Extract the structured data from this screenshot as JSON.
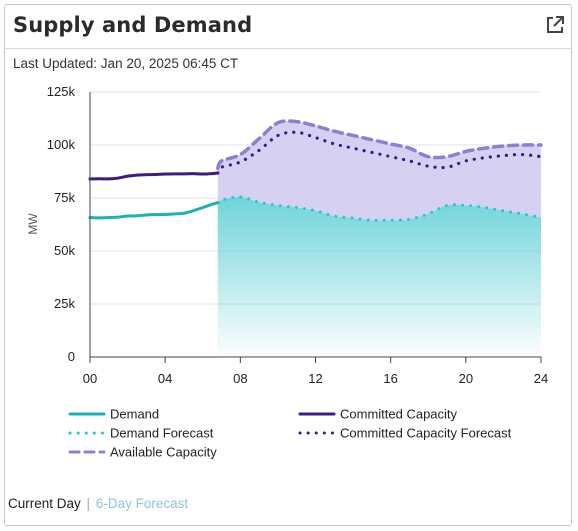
{
  "card": {
    "title": "Supply and Demand",
    "last_updated": "Last Updated: Jan 20, 2025 06:45 CT"
  },
  "footer": {
    "current_day": "Current Day",
    "separator": "|",
    "forecast_link": "6-Day Forecast"
  },
  "colors": {
    "demand": "#1ab3b8",
    "demand_forecast": "#2cc6d2",
    "committed": "#3f1a85",
    "committed_forecast": "#3f1a85",
    "available": "#8b80d4",
    "available_fill": "#cfc8ee",
    "demand_fill": "#7fd9de"
  },
  "chart_data": {
    "type": "line",
    "ylabel": "MW",
    "xlabel": "",
    "xlim": [
      0,
      24
    ],
    "ylim": [
      0,
      125000
    ],
    "x_ticks": [
      0,
      4,
      8,
      12,
      16,
      20,
      24
    ],
    "x_tick_labels": [
      "00",
      "04",
      "08",
      "12",
      "16",
      "20",
      "24"
    ],
    "y_ticks": [
      0,
      25000,
      50000,
      75000,
      100000,
      125000
    ],
    "y_tick_labels": [
      "0",
      "25k",
      "50k",
      "75k",
      "100k",
      "125k"
    ],
    "series": [
      {
        "name": "Demand",
        "style": "solid",
        "x": [
          0,
          0.5,
          1,
          1.5,
          2,
          2.5,
          3,
          3.5,
          4,
          4.5,
          5,
          5.5,
          6,
          6.5,
          6.8
        ],
        "y": [
          65800,
          65600,
          65800,
          66000,
          66500,
          66600,
          67000,
          67200,
          67200,
          67500,
          67800,
          69000,
          70500,
          72000,
          72800
        ]
      },
      {
        "name": "Demand Forecast",
        "style": "dotted",
        "x": [
          6.8,
          7,
          8,
          9,
          10,
          11,
          12,
          13,
          14,
          15,
          16,
          17,
          18,
          19,
          20,
          21,
          22,
          23,
          24
        ],
        "y": [
          72800,
          74000,
          75500,
          73000,
          71500,
          70500,
          69000,
          66500,
          65500,
          64500,
          64500,
          65000,
          67500,
          71500,
          71500,
          70500,
          69000,
          67500,
          65800
        ]
      },
      {
        "name": "Committed Capacity",
        "style": "solid",
        "x": [
          0,
          0.5,
          1,
          1.5,
          2,
          2.5,
          3,
          3.5,
          4,
          4.5,
          5,
          5.5,
          6,
          6.5,
          6.8
        ],
        "y": [
          84000,
          84100,
          84000,
          84400,
          85300,
          85800,
          86000,
          86100,
          86300,
          86400,
          86400,
          86500,
          86300,
          86500,
          86800
        ]
      },
      {
        "name": "Committed Capacity Forecast",
        "style": "dotted",
        "x": [
          6.8,
          7,
          8,
          9,
          10,
          11,
          12,
          13,
          14,
          15,
          16,
          17,
          18,
          19,
          20,
          21,
          22,
          23,
          24
        ],
        "y": [
          86800,
          89500,
          92000,
          97500,
          104500,
          106000,
          103500,
          100500,
          98500,
          96500,
          94500,
          92500,
          90000,
          89500,
          92500,
          94000,
          95000,
          95500,
          94500
        ]
      },
      {
        "name": "Available Capacity",
        "style": "dashed",
        "x": [
          6.8,
          7,
          8,
          9,
          10,
          11,
          12,
          13,
          14,
          15,
          16,
          17,
          18,
          19,
          20,
          21,
          22,
          23,
          24
        ],
        "y": [
          89000,
          92500,
          95500,
          103000,
          110500,
          111000,
          109000,
          106500,
          104500,
          102500,
          100500,
          98500,
          94500,
          94500,
          97000,
          98500,
          99500,
          100000,
          100000
        ]
      }
    ],
    "legend": [
      {
        "label": "Demand",
        "series": "Demand",
        "style": "solid"
      },
      {
        "label": "Committed Capacity",
        "series": "Committed Capacity",
        "style": "solid"
      },
      {
        "label": "Demand Forecast",
        "series": "Demand Forecast",
        "style": "dotted"
      },
      {
        "label": "Committed Capacity Forecast",
        "series": "Committed Capacity Forecast",
        "style": "dotted"
      },
      {
        "label": "Available Capacity",
        "series": "Available Capacity",
        "style": "dashed"
      }
    ],
    "legend_placement": "bottom",
    "grid": "horizontal"
  }
}
